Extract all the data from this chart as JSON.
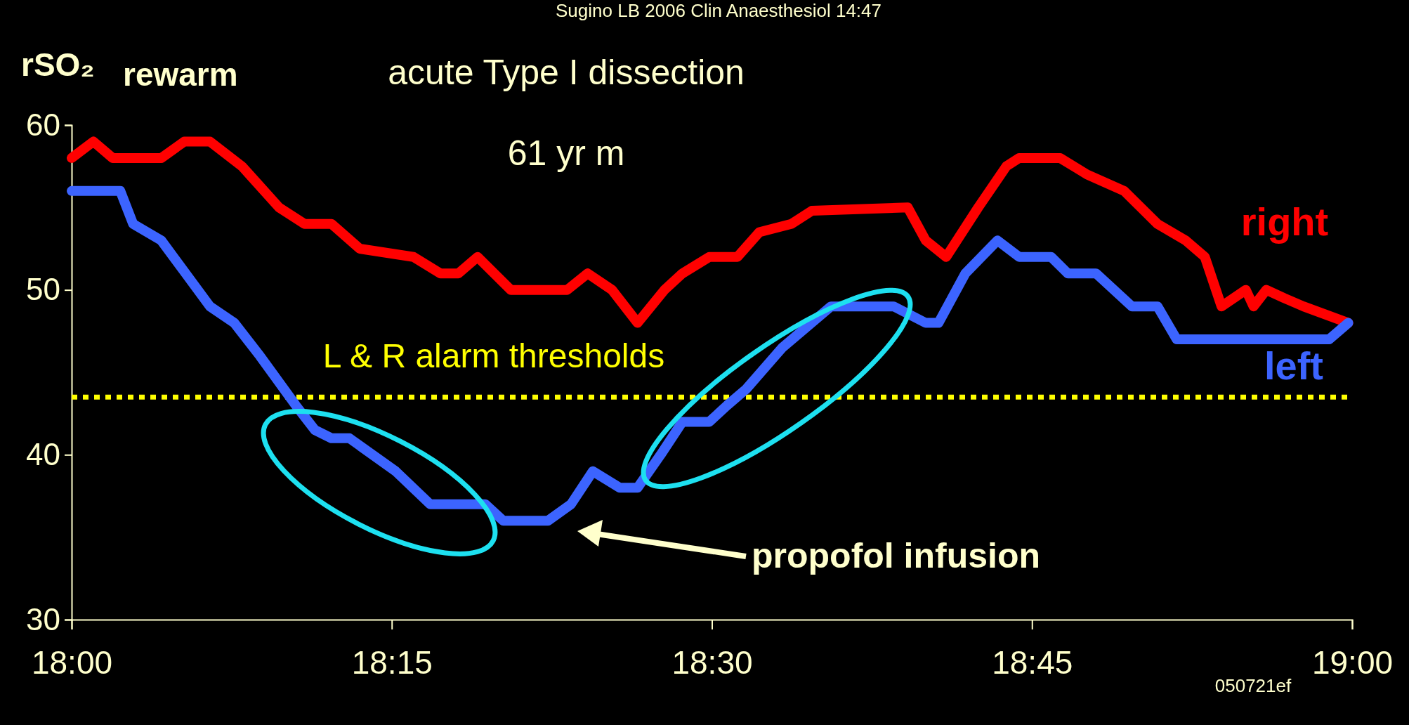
{
  "chart_data": {
    "type": "line",
    "title": "acute Type I dissection",
    "subtitle": "61 yr m",
    "ylabel": "rSO₂",
    "annotations": [
      "Sugino LB 2006 Clin Anaesthesiol 14:47",
      "rewarm",
      "propofol infusion",
      "050721ef"
    ],
    "xlim": [
      18,
      19
    ],
    "ylim": [
      30,
      60
    ],
    "xticks": [
      {
        "value": 18,
        "label": "18:00"
      },
      {
        "value": 18.25,
        "label": "18:15"
      },
      {
        "value": 18.5,
        "label": "18:30"
      },
      {
        "value": 18.75,
        "label": "18:45"
      },
      {
        "value": 19,
        "label": "19:00"
      }
    ],
    "yticks": [
      30,
      40,
      50,
      60
    ],
    "line_style": "solid",
    "ref_lines": [
      {
        "axis": "y",
        "value": 43.5,
        "label": "L & R alarm thresholds",
        "color": "#ffff00",
        "line_style": "dotted"
      }
    ],
    "series": [
      {
        "name": "right",
        "color": "#ff0000",
        "x": [
          18,
          18.017,
          18.032,
          18.07,
          18.088,
          18.108,
          18.133,
          18.162,
          18.182,
          18.203,
          18.225,
          18.267,
          18.288,
          18.302,
          18.317,
          18.343,
          18.387,
          18.403,
          18.422,
          18.442,
          18.463,
          18.477,
          18.498,
          18.52,
          18.537,
          18.562,
          18.578,
          18.653,
          18.667,
          18.683,
          18.708,
          18.73,
          18.74,
          18.772,
          18.793,
          18.822,
          18.848,
          18.87,
          18.885,
          18.898,
          18.917,
          18.923,
          18.933,
          18.947,
          18.962,
          18.997
        ],
        "values": [
          58,
          59,
          58,
          58,
          59,
          59,
          57.5,
          55,
          54,
          54,
          52.5,
          52,
          51,
          51,
          52,
          50,
          50,
          51,
          50,
          48,
          50,
          51,
          52,
          52,
          53.5,
          54,
          54.8,
          55,
          53,
          52,
          55,
          57.5,
          58,
          58,
          57,
          56,
          54,
          53,
          52,
          49,
          50,
          49,
          50,
          49.5,
          49,
          48
        ]
      },
      {
        "name": "left",
        "color": "#3c64ff",
        "x": [
          18,
          18.038,
          18.048,
          18.07,
          18.108,
          18.127,
          18.147,
          18.175,
          18.19,
          18.203,
          18.217,
          18.253,
          18.28,
          18.323,
          18.337,
          18.372,
          18.39,
          18.407,
          18.428,
          18.442,
          18.46,
          18.477,
          18.498,
          18.512,
          18.527,
          18.555,
          18.593,
          18.642,
          18.667,
          18.677,
          18.698,
          18.723,
          18.74,
          18.765,
          18.778,
          18.8,
          18.828,
          18.848,
          18.863,
          18.982,
          18.997
        ],
        "values": [
          56,
          56,
          54,
          53,
          49,
          48,
          46,
          43,
          41.5,
          41,
          41,
          39,
          37,
          37,
          36,
          36,
          37,
          39,
          38,
          38,
          40,
          42,
          42,
          43,
          44,
          46.5,
          49,
          49,
          48,
          48,
          51,
          53,
          52,
          52,
          51,
          51,
          49,
          49,
          47,
          47,
          48
        ]
      }
    ]
  }
}
